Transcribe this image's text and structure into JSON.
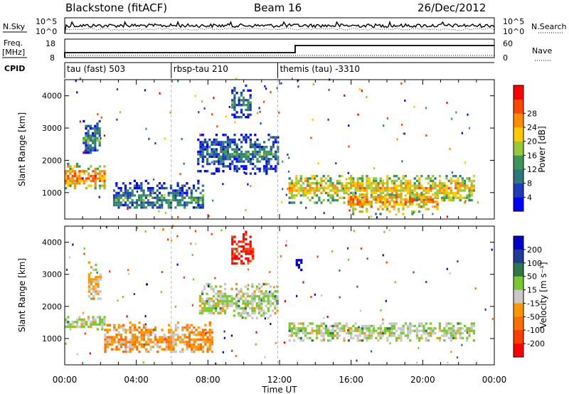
{
  "header": {
    "station": "Blackstone (fitACF)",
    "beam": "Beam 16",
    "date": "26/Dec/2012"
  },
  "noise_panel": {
    "left_label": "N.Sky",
    "right_label": "N.Search",
    "left_ticks": [
      "10^5",
      "10^0"
    ],
    "right_ticks": [
      "10^5",
      "10^0"
    ]
  },
  "freq_panel": {
    "left_label_1": "Freq.",
    "left_label_2": "[MHz]",
    "left_ticks": [
      "18",
      "8"
    ],
    "right_label": "Nave",
    "right_ticks": [
      "60",
      "0"
    ]
  },
  "cpid": {
    "label": "CPID",
    "segments": [
      {
        "text": "tau (fast) 503",
        "start_hour": 0
      },
      {
        "text": "rbsp-tau 210",
        "start_hour": 5.95
      },
      {
        "text": "themis (tau) -3310",
        "start_hour": 11.9
      }
    ]
  },
  "chart_data": [
    {
      "type": "heatmap",
      "name": "power",
      "ylabel": "Slant Range [km]",
      "xlabel": "Time UT",
      "xlim": [
        0,
        24
      ],
      "ylim": [
        180,
        4500
      ],
      "yticks": [
        "1000",
        "2000",
        "3000",
        "4000"
      ],
      "xticks": [
        "00:00",
        "04:00",
        "08:00",
        "12:00",
        "16:00",
        "20:00",
        "00:00"
      ],
      "colorbar": {
        "label": "Power [dB]",
        "ticks": [
          "4",
          "8",
          "12",
          "16",
          "20",
          "24",
          "28"
        ],
        "colors": [
          "#0000ff",
          "#1e3cb4",
          "#2d7878",
          "#3c965a",
          "#96c83c",
          "#ffc800",
          "#ff8c00",
          "#ff4600",
          "#ff0000"
        ]
      },
      "regions": [
        {
          "t": [
            0.0,
            2.2
          ],
          "r": [
            1100,
            1850
          ],
          "core": 1450,
          "level": 0.75
        },
        {
          "t": [
            1.0,
            2.0
          ],
          "r": [
            2200,
            3200
          ],
          "core": 2600,
          "level": 0.35
        },
        {
          "t": [
            2.7,
            7.7
          ],
          "r": [
            500,
            1400
          ],
          "core": 750,
          "level": 0.35
        },
        {
          "t": [
            7.4,
            11.9
          ],
          "r": [
            1550,
            2750
          ],
          "core": 2150,
          "level": 0.3
        },
        {
          "t": [
            9.3,
            10.4
          ],
          "r": [
            3300,
            4300
          ],
          "core": 3700,
          "level": 0.3
        },
        {
          "t": [
            12.5,
            22.8
          ],
          "r": [
            650,
            1500
          ],
          "core": 1100,
          "level": 0.65
        },
        {
          "t": [
            15.8,
            20.8
          ],
          "r": [
            300,
            950
          ],
          "core": 700,
          "level": 0.75
        }
      ]
    },
    {
      "type": "heatmap",
      "name": "velocity",
      "ylabel": "Slant Range [km]",
      "xlabel": "Time UT",
      "xlim": [
        0,
        24
      ],
      "ylim": [
        180,
        4500
      ],
      "yticks": [
        "1000",
        "2000",
        "3000",
        "4000"
      ],
      "xticks": [
        "00:00",
        "04:00",
        "08:00",
        "12:00",
        "16:00",
        "20:00",
        "00:00"
      ],
      "colorbar": {
        "label": "Velocity [m s⁻¹]",
        "ticks": [
          "200",
          "100",
          "50",
          "15",
          "-15",
          "-50",
          "-100",
          "-200"
        ],
        "colors": [
          "#0000c8",
          "#1e3c96",
          "#2d7846",
          "#78c832",
          "#c8c8c8",
          "#ff9600",
          "#ff6e00",
          "#ff3c00",
          "#ff0000"
        ]
      },
      "regions": [
        {
          "t": [
            0.0,
            2.2
          ],
          "r": [
            1250,
            1650
          ],
          "core": 1450,
          "level": 0.45
        },
        {
          "t": [
            1.3,
            2.0
          ],
          "r": [
            2200,
            3400
          ],
          "core": 2600,
          "level": 0.55
        },
        {
          "t": [
            2.2,
            8.2
          ],
          "r": [
            550,
            1500
          ],
          "core": 900,
          "level": 0.62
        },
        {
          "t": [
            7.5,
            11.9
          ],
          "r": [
            1600,
            2700
          ],
          "core": 2100,
          "level": 0.45
        },
        {
          "t": [
            9.3,
            10.5
          ],
          "r": [
            3300,
            4300
          ],
          "core": 3650,
          "level": 0.9
        },
        {
          "t": [
            12.9,
            13.2
          ],
          "r": [
            3100,
            3500
          ],
          "core": 3300,
          "level": 0.02
        },
        {
          "t": [
            12.5,
            22.8
          ],
          "r": [
            900,
            1500
          ],
          "core": 1200,
          "level": 0.45
        }
      ]
    }
  ]
}
